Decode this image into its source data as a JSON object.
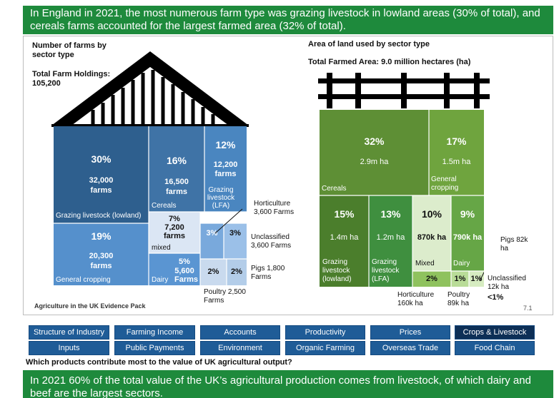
{
  "top_banner": "In England in 2021, the most numerous farm type was grazing livestock in lowland areas (30% of total), and cereals farms accounted for the largest farmed area (32% of total).",
  "left": {
    "title": "Number of farms by sector type",
    "holdings_label": "Total Farm Holdings:",
    "holdings_value": "105,200",
    "blocks": {
      "grazing_lowland": {
        "pct": "30%",
        "count": "32,000",
        "unit": "farms",
        "name": "Grazing livestock (lowland)"
      },
      "cereals": {
        "pct": "16%",
        "count": "16,500",
        "unit": "farms",
        "name": "Cereals"
      },
      "grazing_lfa": {
        "pct": "12%",
        "count": "12,200",
        "unit": "farms",
        "name": "Grazing livestock (LFA)"
      },
      "general_cropping": {
        "pct": "19%",
        "count": "20,300",
        "unit": "farms",
        "name": "General cropping"
      },
      "mixed": {
        "pct": "7%",
        "count": "7,200",
        "unit": "farms",
        "name": "mixed"
      },
      "dairy": {
        "pct": "5%",
        "count": "5,600",
        "name": "Dairy",
        "unit": "Farms"
      },
      "horticulture": {
        "pct": "3%"
      },
      "unclassified": {
        "pct": "3%"
      },
      "pigs": {
        "pct": "2%"
      },
      "poultry": {
        "pct": "2%"
      }
    },
    "callouts": {
      "horticulture": "Horticulture 3,600 Farms",
      "unclassified": "Unclassified 3,600 Farms",
      "pigs": "Pigs 1,800 Farms",
      "poultry": "Poultry 2,500 Farms"
    },
    "source": "Agriculture in the UK Evidence Pack"
  },
  "right": {
    "title": "Area of land used by sector type",
    "total_label": "Total Farmed Area: 9.0 million hectares (ha)",
    "blocks": {
      "cereals": {
        "pct": "32%",
        "area": "2.9m ha",
        "name": "Cereals"
      },
      "general_cropping": {
        "pct": "17%",
        "area": "1.5m ha",
        "name": "General cropping"
      },
      "grazing_lowland": {
        "pct": "15%",
        "area": "1.4m ha",
        "name": "Grazing livestock (lowland)"
      },
      "grazing_lfa": {
        "pct": "13%",
        "area": "1.2m ha",
        "name": "Grazing livestock (LFA)"
      },
      "mixed": {
        "pct": "10%",
        "area": "870k ha",
        "name": "Mixed"
      },
      "dairy": {
        "pct": "9%",
        "area": "790k ha",
        "name": "Dairy"
      },
      "horticulture": {
        "pct": "2%"
      },
      "poultry": {
        "pct": "1%"
      },
      "pigs_unclass": {
        "pct": "1%"
      }
    },
    "callouts": {
      "pigs": "Pigs 82k ha",
      "unclassified": "Unclassified 12k ha",
      "horticulture": "Horticulture 160k ha",
      "poultry": "Poultry 89k ha",
      "lt1": "<1%"
    },
    "page_number": "7.1"
  },
  "nav": {
    "row1": [
      "Structure of Industry",
      "Farming Income",
      "Accounts",
      "Productivity",
      "Prices",
      "Crops & Livestock"
    ],
    "row2": [
      "Inputs",
      "Public Payments",
      "Environment",
      "Organic Farming",
      "Overseas Trade",
      "Food Chain"
    ],
    "active": "Crops & Livestock"
  },
  "question": "Which products contribute most to the value of UK agricultural output?",
  "bottom_banner": "In 2021 60% of the total value of the UK’s agricultural production comes from livestock, of which dairy and beef are the largest sectors.",
  "colors": {
    "banner_green": "#1e8a3c",
    "nav_blue": "#1f5c97",
    "nav_active": "#0d2f56"
  }
}
